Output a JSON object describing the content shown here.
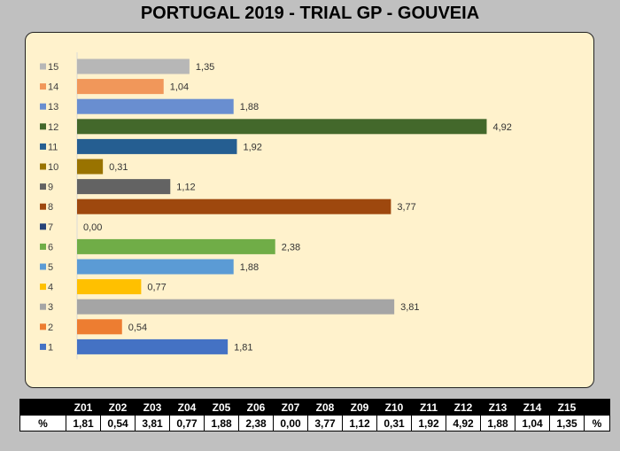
{
  "chart_data": {
    "type": "bar",
    "orientation": "horizontal",
    "title": "PORTUGAL 2019 - TRIAL GP - GOUVEIA",
    "categories": [
      "1",
      "2",
      "3",
      "4",
      "5",
      "6",
      "7",
      "8",
      "9",
      "10",
      "11",
      "12",
      "13",
      "14",
      "15"
    ],
    "values": [
      1.81,
      0.54,
      3.81,
      0.77,
      1.88,
      2.38,
      0.0,
      3.77,
      1.12,
      0.31,
      1.92,
      4.92,
      1.88,
      1.04,
      1.35
    ],
    "value_labels": [
      "1,81",
      "0,54",
      "3,81",
      "0,77",
      "1,88",
      "2,38",
      "0,00",
      "3,77",
      "1,12",
      "0,31",
      "1,92",
      "4,92",
      "1,88",
      "1,04",
      "1,35"
    ],
    "colors": [
      "#4472c4",
      "#ed7d31",
      "#a5a5a5",
      "#ffc000",
      "#5b9bd5",
      "#70ad47",
      "#264478",
      "#9e480e",
      "#636363",
      "#997300",
      "#255e91",
      "#43682b",
      "#698ed0",
      "#f1975a",
      "#b7b7b7"
    ],
    "xlim": [
      0,
      5
    ],
    "grid": false,
    "legend": "left"
  },
  "table": {
    "header_first": "",
    "headers": [
      "Z01",
      "Z02",
      "Z03",
      "Z04",
      "Z05",
      "Z06",
      "Z07",
      "Z08",
      "Z09",
      "Z10",
      "Z11",
      "Z12",
      "Z13",
      "Z14",
      "Z15"
    ],
    "header_last": "",
    "row_label": "%",
    "values": [
      "1,81",
      "0,54",
      "3,81",
      "0,77",
      "1,88",
      "2,38",
      "0,00",
      "3,77",
      "1,12",
      "0,31",
      "1,92",
      "4,92",
      "1,88",
      "1,04",
      "1,35"
    ],
    "row_last": "%"
  }
}
